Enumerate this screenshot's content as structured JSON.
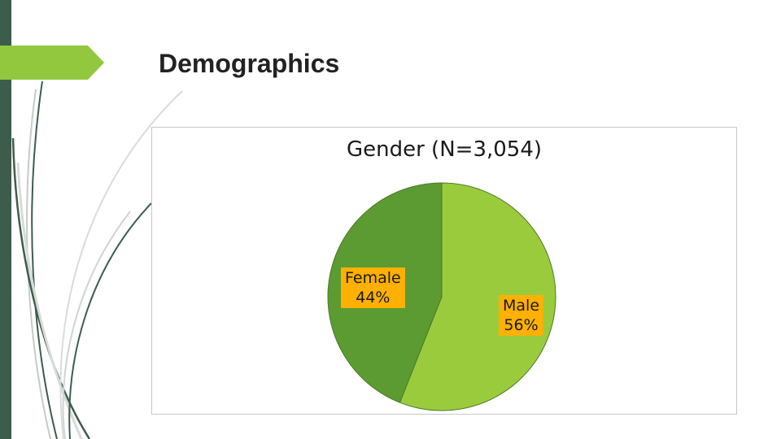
{
  "slide": {
    "title": "Demographics"
  },
  "colors": {
    "left_bar": "#3e5c4c",
    "accent": "#92c83e",
    "label_bg": "#ffb000"
  },
  "chart_data": {
    "type": "pie",
    "title": "Gender (N=3,054)",
    "slices": [
      {
        "label": "Male",
        "value": 56,
        "value_text": "56%",
        "color": "#9acb3c"
      },
      {
        "label": "Female",
        "value": 44,
        "value_text": "44%",
        "color": "#5c9a32"
      }
    ],
    "legend": "none"
  }
}
